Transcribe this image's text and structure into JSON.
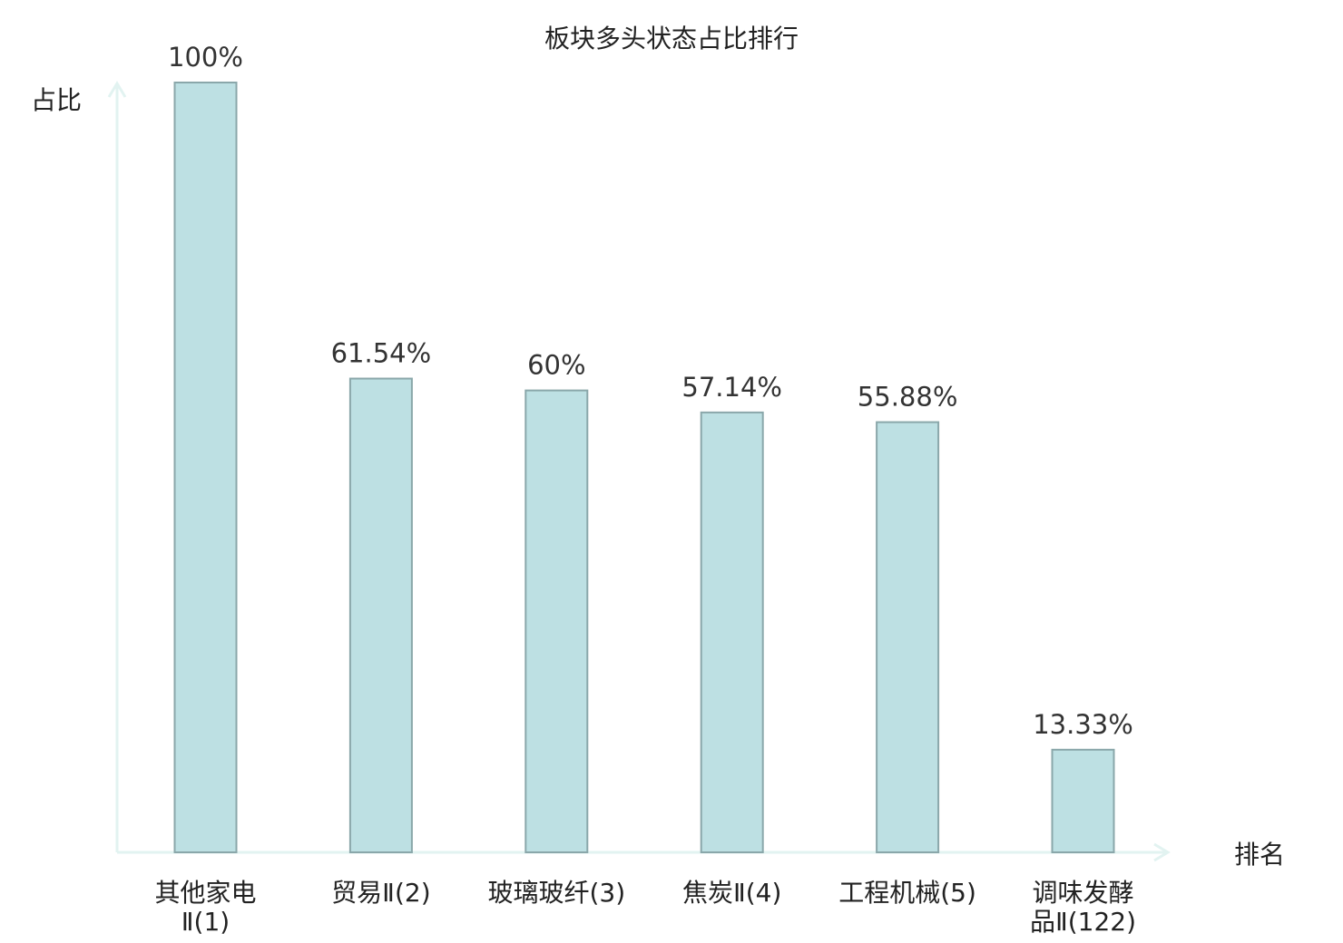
{
  "chart_data": {
    "type": "bar",
    "title": "板块多头状态占比排行",
    "ylabel": "占比",
    "xlabel": "排名",
    "ylim": [
      0,
      100
    ],
    "grid": false,
    "categories": [
      [
        "其他家电",
        "Ⅱ(1)"
      ],
      [
        "贸易Ⅱ(2)"
      ],
      [
        "玻璃玻纤(3)"
      ],
      [
        "焦炭Ⅱ(4)"
      ],
      [
        "工程机械(5)"
      ],
      [
        "调味发酵",
        "品Ⅱ(122)"
      ]
    ],
    "values": [
      100,
      61.54,
      60,
      57.14,
      55.88,
      13.33
    ],
    "value_labels": [
      "100%",
      "61.54%",
      "60%",
      "57.14%",
      "55.88%",
      "13.33%"
    ],
    "highlight_index": 5,
    "colors": {
      "bar_fill": "#bde0e3",
      "bar_stroke": "#8aa7aa",
      "axis": "#e2f3f1",
      "text": "#222222",
      "highlight_text": "#e02020"
    }
  }
}
